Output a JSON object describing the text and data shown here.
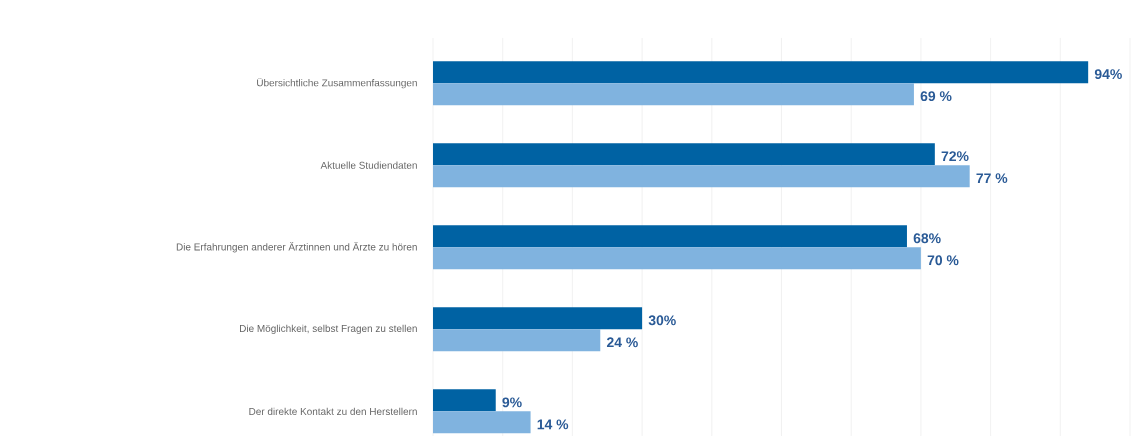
{
  "chart_data": {
    "type": "bar",
    "orientation": "horizontal",
    "categories": [
      "Übersichtliche Zusammenfassungen",
      "Aktuelle Studiendaten",
      "Die Erfahrungen anderer Ärztinnen und Ärzte zu hören",
      "Die Möglichkeit, selbst Fragen zu stellen",
      "Der direkte Kontakt zu den Herstellern"
    ],
    "series": [
      {
        "color": "#0062a3",
        "values": [
          94,
          72,
          68,
          30,
          9
        ],
        "value_labels": [
          "94%",
          "72%",
          "68%",
          "30%",
          "9%"
        ]
      },
      {
        "color": "#80b3df",
        "values": [
          69,
          77,
          70,
          24,
          14
        ],
        "value_labels": [
          "69 %",
          "77 %",
          "70 %",
          "24 %",
          "14 %"
        ]
      }
    ],
    "xlim": [
      0,
      100
    ],
    "xticks": [
      {
        "value": 0,
        "label": null
      },
      {
        "value": 10,
        "label": null
      },
      {
        "value": 20,
        "label": null
      },
      {
        "value": 30,
        "label": null
      },
      {
        "value": 40,
        "label": null
      },
      {
        "value": 50,
        "label": null
      },
      {
        "value": 60,
        "label": null
      },
      {
        "value": 70,
        "label": null
      },
      {
        "value": 80,
        "label": null
      },
      {
        "value": 90,
        "label": null
      },
      {
        "value": 100,
        "label": null
      }
    ],
    "grid": "x",
    "tick_labels": "y"
  }
}
